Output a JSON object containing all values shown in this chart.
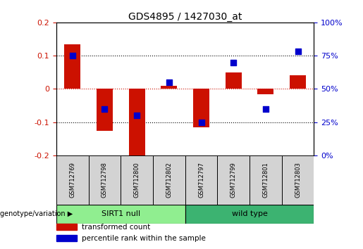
{
  "title": "GDS4895 / 1427030_at",
  "samples": [
    "GSM712769",
    "GSM712798",
    "GSM712800",
    "GSM712802",
    "GSM712797",
    "GSM712799",
    "GSM712801",
    "GSM712803"
  ],
  "groups": [
    {
      "name": "SIRT1 null",
      "indices": [
        0,
        1,
        2,
        3
      ],
      "color": "#90EE90"
    },
    {
      "name": "wild type",
      "indices": [
        4,
        5,
        6,
        7
      ],
      "color": "#3CB371"
    }
  ],
  "red_values": [
    0.135,
    -0.125,
    -0.205,
    0.01,
    -0.115,
    0.05,
    -0.015,
    0.042
  ],
  "blue_values_pct": [
    75,
    35,
    30,
    55,
    25,
    70,
    35,
    78
  ],
  "ylim_red": [
    -0.2,
    0.2
  ],
  "ylim_blue": [
    0,
    100
  ],
  "yticks_red": [
    -0.2,
    -0.1,
    0.0,
    0.1,
    0.2
  ],
  "ytick_red_labels": [
    "-0.2",
    "-0.1",
    "0",
    "0.1",
    "0.2"
  ],
  "yticks_blue": [
    0,
    25,
    50,
    75,
    100
  ],
  "ytick_blue_labels": [
    "0%",
    "25%",
    "50%",
    "75%",
    "100%"
  ],
  "red_color": "#CC1100",
  "blue_color": "#0000CC",
  "bar_width": 0.5,
  "blue_square_size": 40,
  "legend_red": "transformed count",
  "legend_blue": "percentile rank within the sample",
  "genotype_label": "genotype/variation",
  "fig_bg": "#FFFFFF",
  "sample_box_color": "#D3D3D3",
  "group_border_color": "#000000"
}
